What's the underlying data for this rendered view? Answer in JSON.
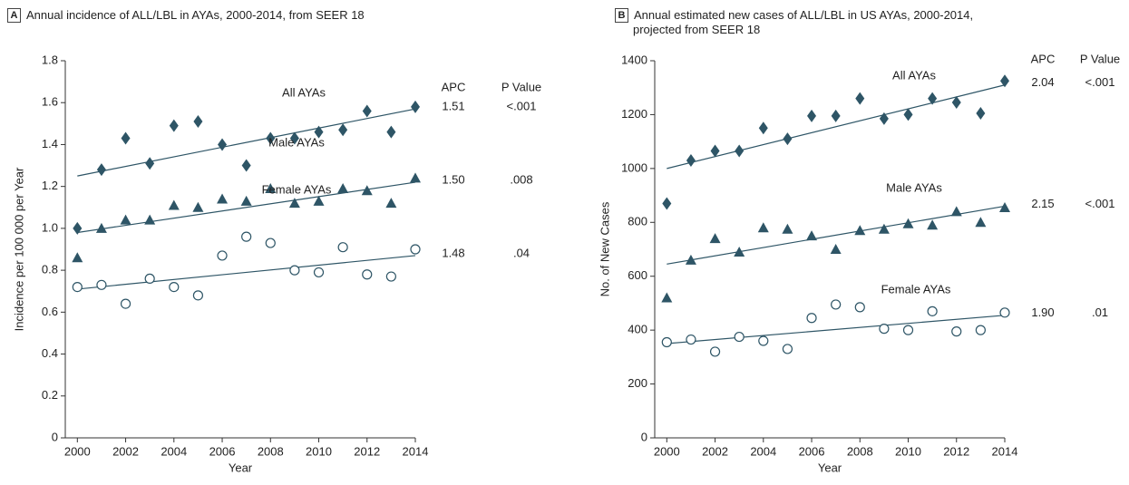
{
  "chart_data": [
    {
      "type": "scatter",
      "panel": "A",
      "title": "Annual incidence of ALL/LBL in AYAs, 2000-2014, from SEER 18",
      "xlabel": "Year",
      "ylabel": "Incidence per 100 000 per Year",
      "xlim": [
        1999.5,
        2014
      ],
      "xticks": [
        2000,
        2002,
        2004,
        2006,
        2008,
        2010,
        2012,
        2014
      ],
      "ylim": [
        0,
        1.8
      ],
      "yticks": [
        0,
        0.2,
        0.4,
        0.6,
        0.8,
        {
          "value": 1,
          "label": "1.0"
        },
        1.2,
        1.4,
        1.6,
        1.8
      ],
      "apc_header": "APC",
      "p_header": "P Value",
      "x": [
        2000,
        2001,
        2002,
        2003,
        2004,
        2005,
        2006,
        2007,
        2008,
        2009,
        2010,
        2011,
        2012,
        2013,
        2014
      ],
      "series": [
        {
          "name": "All AYAs",
          "color": "#2e5566",
          "marker": "diamond",
          "values": [
            1.0,
            1.28,
            1.43,
            1.31,
            1.49,
            1.51,
            1.4,
            1.3,
            1.43,
            1.43,
            1.46,
            1.47,
            1.56,
            1.46,
            1.58
          ],
          "trend": [
            1.25,
            1.57
          ],
          "apc": "1.51",
          "p_value": "<.001"
        },
        {
          "name": "Male AYAs",
          "color": "#2e5566",
          "marker": "triangle",
          "values": [
            0.86,
            1.0,
            1.04,
            1.04,
            1.11,
            1.1,
            1.14,
            1.13,
            1.19,
            1.12,
            1.13,
            1.19,
            1.18,
            1.12,
            1.24
          ],
          "trend": [
            0.98,
            1.22
          ],
          "apc": "1.50",
          "p_value": ".008"
        },
        {
          "name": "Female AYAs",
          "color": "#2e5566",
          "marker": "circle-open",
          "values": [
            0.72,
            0.73,
            0.64,
            0.76,
            0.72,
            0.68,
            0.87,
            0.96,
            0.93,
            0.8,
            0.79,
            0.91,
            0.78,
            0.77,
            0.9
          ],
          "trend": [
            0.71,
            0.87
          ],
          "apc": "1.48",
          "p_value": ".04"
        }
      ]
    },
    {
      "type": "scatter",
      "panel": "B",
      "title": "Annual estimated new cases of ALL/LBL in US AYAs, 2000-2014, projected from SEER 18",
      "xlabel": "Year",
      "ylabel": "No. of New Cases",
      "xlim": [
        1999.5,
        2014
      ],
      "xticks": [
        2000,
        2002,
        2004,
        2006,
        2008,
        2010,
        2012,
        2014
      ],
      "ylim": [
        0,
        1400
      ],
      "yticks": [
        0,
        200,
        400,
        600,
        800,
        1000,
        1200,
        1400
      ],
      "apc_header": "APC",
      "p_header": "P Value",
      "x": [
        2000,
        2001,
        2002,
        2003,
        2004,
        2005,
        2006,
        2007,
        2008,
        2009,
        2010,
        2011,
        2012,
        2013,
        2014
      ],
      "series": [
        {
          "name": "All AYAs",
          "color": "#2e5566",
          "marker": "diamond",
          "values": [
            870,
            1030,
            1065,
            1065,
            1150,
            1110,
            1195,
            1195,
            1260,
            1185,
            1200,
            1260,
            1245,
            1205,
            1325
          ],
          "trend": [
            1000,
            1310
          ],
          "apc": "2.04",
          "p_value": "<.001"
        },
        {
          "name": "Male AYAs",
          "color": "#2e5566",
          "marker": "triangle",
          "values": [
            520,
            660,
            740,
            690,
            780,
            775,
            750,
            700,
            770,
            775,
            795,
            790,
            840,
            800,
            855
          ],
          "trend": [
            645,
            860
          ],
          "apc": "2.15",
          "p_value": "<.001"
        },
        {
          "name": "Female AYAs",
          "color": "#2e5566",
          "marker": "circle-open",
          "values": [
            355,
            365,
            320,
            375,
            360,
            330,
            445,
            495,
            485,
            405,
            400,
            470,
            395,
            400,
            465
          ],
          "trend": [
            350,
            455
          ],
          "apc": "1.90",
          "p_value": ".01"
        }
      ]
    }
  ]
}
